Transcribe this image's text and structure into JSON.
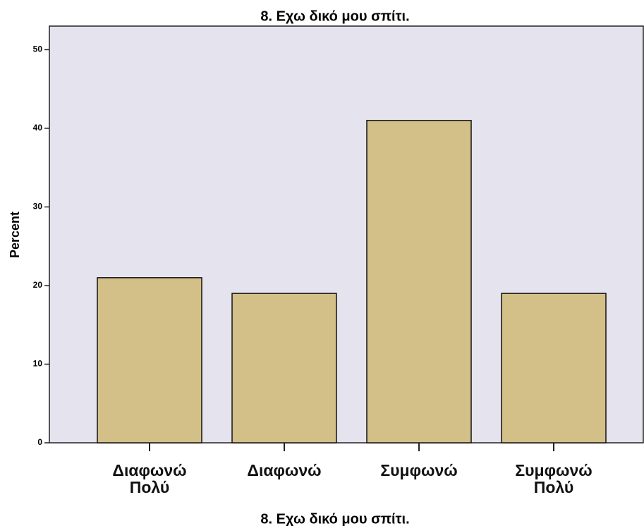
{
  "chart_data": {
    "type": "bar",
    "title": "8. Εχω δικό μου σπίτι.",
    "xlabel": "8. Εχω δικό μου σπίτι.",
    "ylabel": "Percent",
    "categories": [
      "Διαφωνώ Πολύ",
      "Διαφωνώ",
      "Συμφωνώ",
      "Συμφωνώ Πολύ"
    ],
    "values": [
      21,
      19,
      41,
      19
    ],
    "color": "#d3bf88",
    "ylim": [
      0,
      53
    ],
    "yticks": [
      0,
      10,
      20,
      30,
      40,
      50
    ],
    "grid": false
  }
}
